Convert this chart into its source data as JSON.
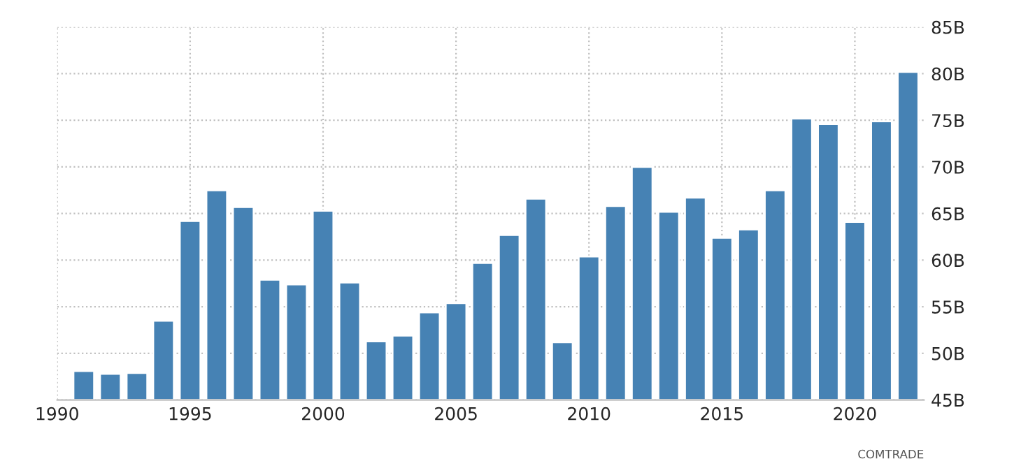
{
  "chart_data": {
    "type": "bar",
    "x": [
      1991,
      1992,
      1993,
      1994,
      1995,
      1996,
      1997,
      1998,
      1999,
      2000,
      2001,
      2002,
      2003,
      2004,
      2005,
      2006,
      2007,
      2008,
      2009,
      2010,
      2011,
      2012,
      2013,
      2014,
      2015,
      2016,
      2017,
      2018,
      2019,
      2020,
      2021,
      2022
    ],
    "values": [
      48.1,
      47.8,
      47.9,
      53.5,
      64.2,
      67.5,
      65.7,
      57.9,
      57.4,
      65.3,
      57.6,
      51.3,
      51.9,
      54.4,
      55.4,
      59.7,
      62.7,
      66.6,
      51.2,
      60.4,
      65.8,
      70.0,
      65.2,
      66.7,
      62.4,
      63.3,
      67.5,
      75.2,
      74.6,
      64.1,
      74.9,
      80.2
    ],
    "color": "#4682b4",
    "xlim": [
      1990,
      2022.6
    ],
    "xticks": [
      1990,
      1995,
      2000,
      2005,
      2010,
      2015,
      2020
    ],
    "ylim": [
      45,
      85
    ],
    "yticks": [
      {
        "value": 45,
        "label": "45B"
      },
      {
        "value": 50,
        "label": "50B"
      },
      {
        "value": 55,
        "label": "55B"
      },
      {
        "value": 60,
        "label": "60B"
      },
      {
        "value": 65,
        "label": "65B"
      },
      {
        "value": 70,
        "label": "70B"
      },
      {
        "value": 75,
        "label": "75B"
      },
      {
        "value": 80,
        "label": "80B"
      },
      {
        "value": 85,
        "label": "85B"
      }
    ],
    "grid": true,
    "annotations": [
      "COMTRADE"
    ]
  }
}
